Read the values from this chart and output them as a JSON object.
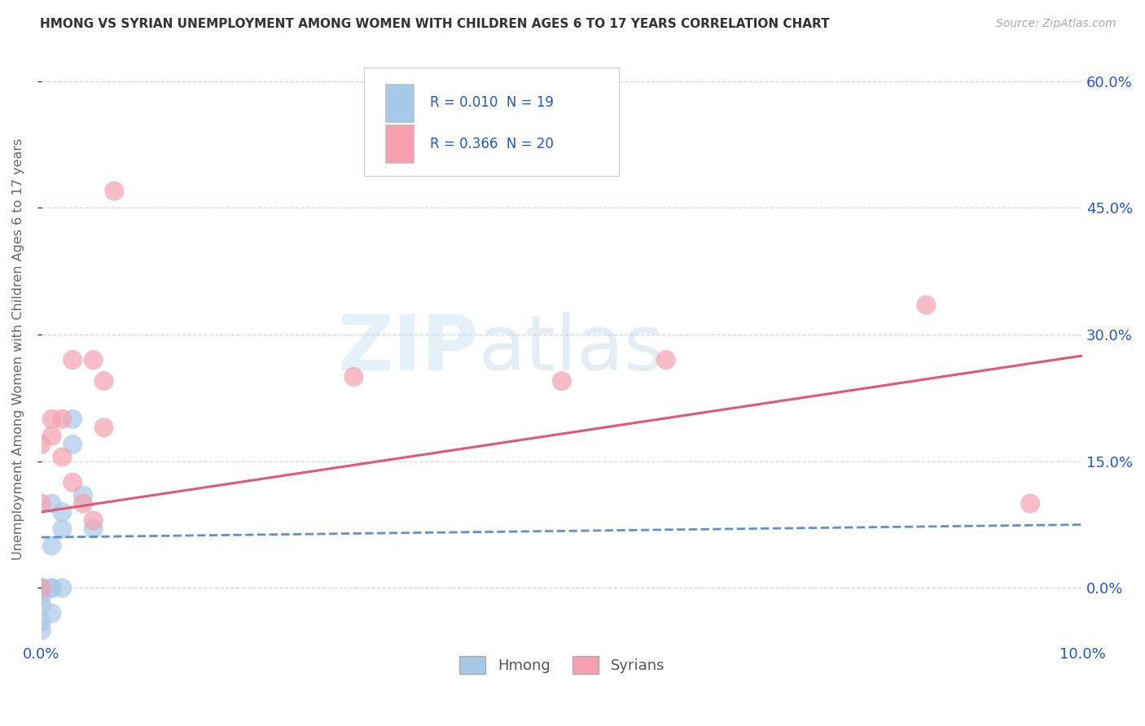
{
  "title": "HMONG VS SYRIAN UNEMPLOYMENT AMONG WOMEN WITH CHILDREN AGES 6 TO 17 YEARS CORRELATION CHART",
  "source": "Source: ZipAtlas.com",
  "ylabel": "Unemployment Among Women with Children Ages 6 to 17 years",
  "legend_r": [
    "R = 0.010",
    "R = 0.366"
  ],
  "legend_n": [
    "N = 19",
    "N = 20"
  ],
  "hmong_color": "#a8c8e8",
  "syrian_color": "#f5a0b0",
  "hmong_line_color": "#6090c8",
  "syrian_line_color": "#e05878",
  "text_color": "#2255cc",
  "background_color": "#ffffff",
  "grid_color": "#c8d8e8",
  "xlim": [
    0.0,
    0.1
  ],
  "ylim": [
    -0.065,
    0.63
  ],
  "yticks": [
    0.0,
    0.15,
    0.3,
    0.45,
    0.6
  ],
  "ytick_labels": [
    "0.0%",
    "15.0%",
    "30.0%",
    "45.0%",
    "60.0%"
  ],
  "hmong_x": [
    0.0,
    0.0,
    0.0,
    0.0,
    0.0,
    0.0,
    0.0,
    0.001,
    0.001,
    0.001,
    0.001,
    0.001,
    0.002,
    0.002,
    0.002,
    0.003,
    0.003,
    0.004,
    0.005
  ],
  "hmong_y": [
    -0.05,
    -0.04,
    -0.02,
    -0.01,
    0.0,
    0.0,
    0.0,
    -0.03,
    0.0,
    0.0,
    0.05,
    0.1,
    0.0,
    0.07,
    0.09,
    0.17,
    0.2,
    0.11,
    0.07
  ],
  "syrian_x": [
    0.0,
    0.0,
    0.0,
    0.001,
    0.001,
    0.002,
    0.002,
    0.003,
    0.003,
    0.004,
    0.005,
    0.005,
    0.006,
    0.006,
    0.007,
    0.03,
    0.05,
    0.06,
    0.085,
    0.095
  ],
  "syrian_y": [
    0.0,
    0.1,
    0.17,
    0.18,
    0.2,
    0.155,
    0.2,
    0.125,
    0.27,
    0.1,
    0.08,
    0.27,
    0.19,
    0.245,
    0.47,
    0.25,
    0.245,
    0.27,
    0.335,
    0.1
  ],
  "hmong_trend_x": [
    0.0,
    0.1
  ],
  "hmong_trend_y": [
    0.06,
    0.075
  ],
  "syrian_trend_x": [
    0.0,
    0.1
  ],
  "syrian_trend_y": [
    0.09,
    0.275
  ]
}
